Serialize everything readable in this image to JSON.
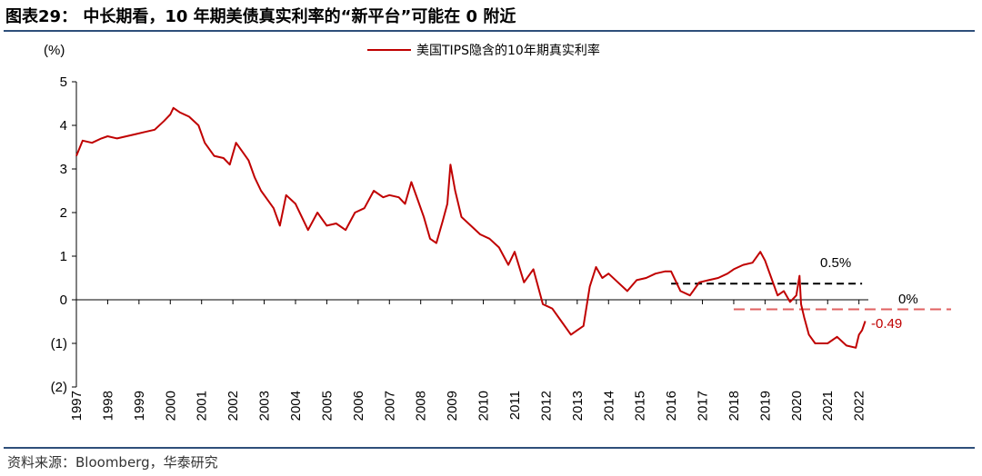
{
  "header": {
    "title": "图表29： 中长期看，10 年期美债真实利率的“新平台”可能在 0 附近"
  },
  "footer": {
    "source": "资料来源：Bloomberg，华泰研究"
  },
  "colors": {
    "series": "#c00000",
    "rule": "#2e4f7a",
    "black_dash": "#000000",
    "red_dash": "#e06060"
  },
  "chart_data": {
    "type": "line",
    "unit_label": "(%)",
    "xlabel": "",
    "ylabel": "",
    "ylim": [
      -2,
      5
    ],
    "xlim": [
      1997,
      2022.3
    ],
    "y_ticks": [
      "(2)",
      "(1)",
      "0",
      "1",
      "2",
      "3",
      "4",
      "5"
    ],
    "y_tick_values": [
      -2,
      -1,
      0,
      1,
      2,
      3,
      4,
      5
    ],
    "x_ticks": [
      "1997",
      "1998",
      "1999",
      "2000",
      "2001",
      "2002",
      "2003",
      "2004",
      "2005",
      "2006",
      "2007",
      "2008",
      "2009",
      "2010",
      "2011",
      "2012",
      "2013",
      "2014",
      "2015",
      "2016",
      "2017",
      "2018",
      "2019",
      "2020",
      "2021",
      "2022"
    ],
    "x_tick_values": [
      1997,
      1998,
      1999,
      2000,
      2001,
      2002,
      2003,
      2004,
      2005,
      2006,
      2007,
      2008,
      2009,
      2010,
      2011,
      2012,
      2013,
      2014,
      2015,
      2016,
      2017,
      2018,
      2019,
      2020,
      2021,
      2022
    ],
    "legend": "top-right",
    "grid": false,
    "series": [
      {
        "name": "美国TIPS隐含的10年期真实利率",
        "x": [
          1997.0,
          1997.2,
          1997.5,
          1997.8,
          1998.0,
          1998.3,
          1998.6,
          1998.9,
          1999.2,
          1999.5,
          1999.8,
          2000.0,
          2000.1,
          2000.3,
          2000.6,
          2000.9,
          2001.1,
          2001.4,
          2001.7,
          2001.9,
          2002.1,
          2002.3,
          2002.5,
          2002.7,
          2002.9,
          2003.1,
          2003.3,
          2003.5,
          2003.7,
          2004.0,
          2004.2,
          2004.4,
          2004.7,
          2005.0,
          2005.3,
          2005.6,
          2005.9,
          2006.2,
          2006.5,
          2006.8,
          2007.0,
          2007.3,
          2007.5,
          2007.7,
          2007.9,
          2008.1,
          2008.3,
          2008.5,
          2008.7,
          2008.85,
          2008.95,
          2009.1,
          2009.3,
          2009.6,
          2009.9,
          2010.2,
          2010.5,
          2010.8,
          2011.0,
          2011.3,
          2011.6,
          2011.9,
          2012.2,
          2012.5,
          2012.8,
          2013.0,
          2013.2,
          2013.4,
          2013.6,
          2013.8,
          2014.0,
          2014.3,
          2014.6,
          2014.9,
          2015.2,
          2015.5,
          2015.8,
          2016.0,
          2016.3,
          2016.6,
          2016.9,
          2017.2,
          2017.5,
          2017.8,
          2018.0,
          2018.3,
          2018.6,
          2018.85,
          2019.0,
          2019.2,
          2019.4,
          2019.6,
          2019.8,
          2020.0,
          2020.1,
          2020.15,
          2020.25,
          2020.4,
          2020.6,
          2020.8,
          2021.0,
          2021.3,
          2021.6,
          2021.9,
          2022.0,
          2022.1,
          2022.2
        ],
        "values": [
          3.3,
          3.65,
          3.6,
          3.7,
          3.75,
          3.7,
          3.75,
          3.8,
          3.85,
          3.9,
          4.1,
          4.25,
          4.4,
          4.3,
          4.2,
          4.0,
          3.6,
          3.3,
          3.25,
          3.1,
          3.6,
          3.4,
          3.2,
          2.8,
          2.5,
          2.3,
          2.1,
          1.7,
          2.4,
          2.2,
          1.9,
          1.6,
          2.0,
          1.7,
          1.75,
          1.6,
          2.0,
          2.1,
          2.5,
          2.35,
          2.4,
          2.35,
          2.2,
          2.7,
          2.3,
          1.9,
          1.4,
          1.3,
          1.8,
          2.2,
          3.1,
          2.5,
          1.9,
          1.7,
          1.5,
          1.4,
          1.2,
          0.8,
          1.1,
          0.4,
          0.7,
          -0.1,
          -0.2,
          -0.5,
          -0.8,
          -0.7,
          -0.6,
          0.3,
          0.75,
          0.5,
          0.6,
          0.4,
          0.2,
          0.45,
          0.5,
          0.6,
          0.65,
          0.65,
          0.2,
          0.1,
          0.4,
          0.45,
          0.5,
          0.6,
          0.7,
          0.8,
          0.85,
          1.1,
          0.9,
          0.5,
          0.1,
          0.2,
          -0.05,
          0.1,
          0.55,
          -0.1,
          -0.4,
          -0.8,
          -1.0,
          -1.0,
          -1.0,
          -0.85,
          -1.05,
          -1.1,
          -0.8,
          -0.7,
          -0.49
        ]
      }
    ],
    "annotations": [
      {
        "text": "0.5%",
        "y": 0.5
      },
      {
        "text": "0%",
        "y": 0
      },
      {
        "text": "-0.49",
        "y": -0.49
      }
    ]
  }
}
